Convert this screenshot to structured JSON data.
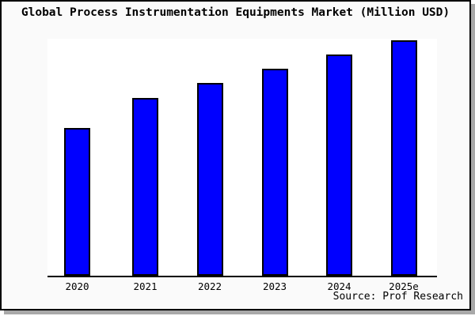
{
  "chart": {
    "title": "Global Process Instrumentation Equipments Market (Million USD)",
    "source_note": "Source: Prof Research"
  },
  "chart_data": {
    "type": "bar",
    "title": "Global Process Instrumentation Equipments Market (Million USD)",
    "categories": [
      "2020",
      "2021",
      "2022",
      "2023",
      "2024",
      "2025e"
    ],
    "values": [
      62.5,
      75.0,
      81.3,
      87.3,
      93.3,
      99.3
    ],
    "value_note": "y-axis has no ticks or labels in the image; values are bar heights as % of plot-area height",
    "xlabel": "",
    "ylabel": "",
    "ylim": [
      0,
      100
    ],
    "grid": false,
    "legend": false,
    "bar_color": "#0000ff",
    "bar_edge_color": "#000000",
    "source_note": "Source: Prof Research"
  },
  "colors": {
    "figure_bg": "#fafafa",
    "plot_bg": "#ffffff",
    "frame_border": "#000000",
    "shadow": "#a9a9a9",
    "text": "#000000"
  }
}
